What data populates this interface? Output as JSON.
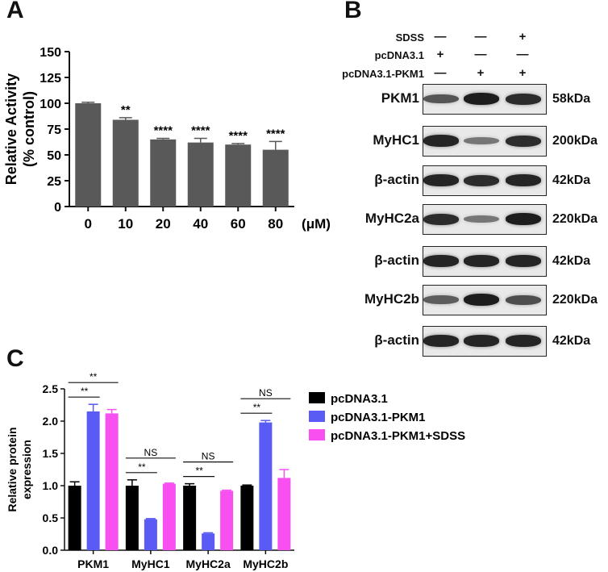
{
  "panels": {
    "a": "A",
    "b": "B",
    "c": "C"
  },
  "chart_data": [
    {
      "type": "bar",
      "panel": "A",
      "categories": [
        "0",
        "10",
        "20",
        "40",
        "60",
        "80"
      ],
      "values": [
        100,
        84,
        65,
        62,
        60,
        55
      ],
      "errors": [
        1,
        2,
        1,
        4,
        1,
        8
      ],
      "significance": [
        "",
        "**",
        "****",
        "****",
        "****",
        "****"
      ],
      "ylabel_line1": "Relative Activity",
      "ylabel_line2": "(% control)",
      "xunit": "(μM)",
      "ylim": [
        0,
        150
      ],
      "yticks": [
        0,
        25,
        50,
        75,
        100,
        125,
        150
      ],
      "bar_color": "#595959",
      "grid": false
    },
    {
      "type": "bar",
      "panel": "C",
      "categories": [
        "PKM1",
        "MyHC1",
        "MyHC2a",
        "MyHC2b"
      ],
      "series": [
        {
          "name": "pcDNA3.1",
          "values": [
            1.0,
            1.0,
            1.0,
            1.0
          ],
          "errors": [
            0.06,
            0.09,
            0.03,
            0.01
          ],
          "color": "#000000"
        },
        {
          "name": "pcDNA3.1-PKM1",
          "values": [
            2.15,
            0.48,
            0.26,
            1.98
          ],
          "errors": [
            0.11,
            0.01,
            0.01,
            0.03
          ],
          "color": "#5a5af5"
        },
        {
          "name": "pcDNA3.1-PKM1+SDSS",
          "values": [
            2.12,
            1.03,
            0.92,
            1.12
          ],
          "errors": [
            0.06,
            0.01,
            0.01,
            0.13
          ],
          "color": "#f74ff0"
        }
      ],
      "comparisons": [
        {
          "group": 0,
          "inner": "**",
          "outer": "**"
        },
        {
          "group": 1,
          "inner": "**",
          "outer": "NS"
        },
        {
          "group": 2,
          "inner": "**",
          "outer": "NS"
        },
        {
          "group": 3,
          "inner": "**",
          "outer": "NS"
        }
      ],
      "ylabel_line1": "Relative protein",
      "ylabel_line2": "expression",
      "ylim": [
        0,
        2.5
      ],
      "yticks": [
        "0.0",
        "0.5",
        "1.0",
        "1.5",
        "2.0",
        "2.5"
      ],
      "legend_position": "top-right",
      "grid": false
    }
  ],
  "blot": {
    "conditions": [
      {
        "label": "SDSS",
        "signs": [
          "—",
          "—",
          "+"
        ]
      },
      {
        "label": "pcDNA3.1",
        "signs": [
          "+",
          "—",
          "—"
        ]
      },
      {
        "label": "pcDNA3.1-PKM1",
        "signs": [
          "—",
          "+",
          "+"
        ]
      }
    ],
    "rows": [
      {
        "protein": "PKM1",
        "kda": "58kDa",
        "intensity": [
          0.55,
          0.9,
          0.8
        ]
      },
      {
        "protein": "MyHC1",
        "kda": "200kDa",
        "intensity": [
          0.85,
          0.35,
          0.8
        ]
      },
      {
        "protein": "β-actin",
        "kda": "42kDa",
        "intensity": [
          0.85,
          0.8,
          0.85
        ]
      },
      {
        "protein": "MyHC2a",
        "kda": "220kDa",
        "intensity": [
          0.8,
          0.35,
          0.9
        ]
      },
      {
        "protein": "β-actin",
        "kda": "42kDa",
        "intensity": [
          0.85,
          0.85,
          0.85
        ]
      },
      {
        "protein": "MyHC2b",
        "kda": "220kDa",
        "intensity": [
          0.5,
          0.9,
          0.6
        ]
      },
      {
        "protein": "β-actin",
        "kda": "42kDa",
        "intensity": [
          0.85,
          0.85,
          0.85
        ]
      }
    ]
  }
}
